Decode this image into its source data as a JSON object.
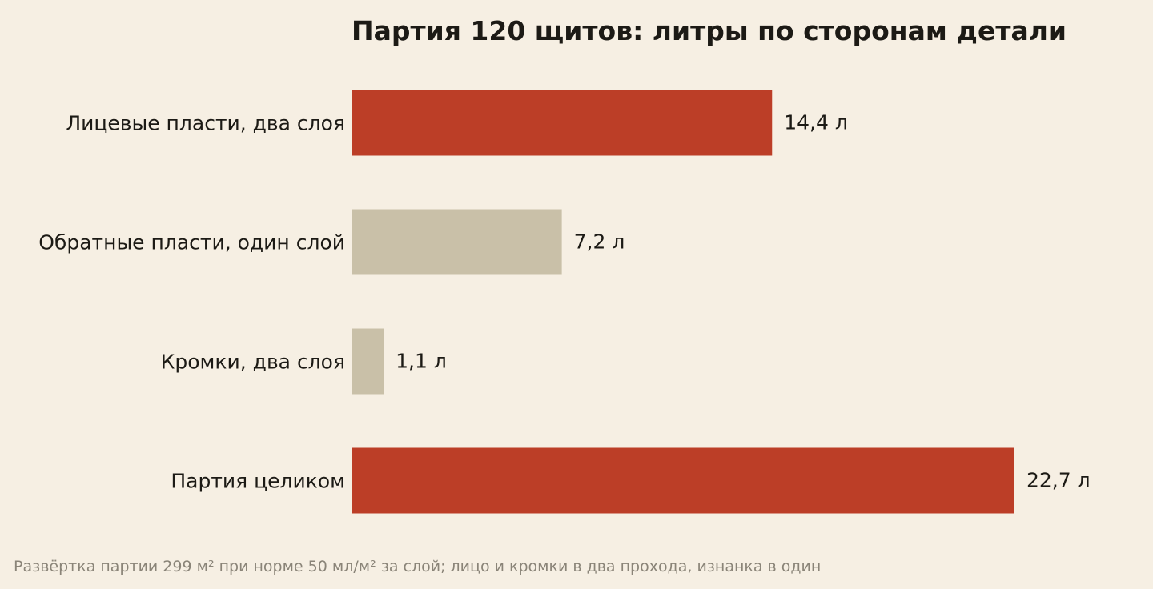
{
  "chart_data": {
    "type": "bar",
    "orientation": "horizontal",
    "title": "Партия 120 щитов: литры по сторонам детали",
    "xlabel": "",
    "ylabel": "",
    "categories": [
      "Лицевые пласти, два слоя",
      "Обратные пласти, один слой",
      "Кромки, два слоя",
      "Партия целиком"
    ],
    "values": [
      14.4,
      7.2,
      1.1,
      22.7
    ],
    "value_labels": [
      "14,4 л",
      "7,2 л",
      "1,1 л",
      "22,7 л"
    ],
    "bar_colors": [
      "#bc3e27",
      "#c9c0a8",
      "#c9c0a8",
      "#bc3e27"
    ],
    "xlim": [
      0,
      22.7
    ],
    "grid": false,
    "legend": "none",
    "footnote": "Развёртка партии 299 м² при норме 50 мл/м² за слой; лицо и кромки в два прохода, изнанка в один"
  },
  "colors": {
    "background": "#f6efe3",
    "text": "#1c1a15",
    "footnote_text": "#8a8478",
    "accent": "#bc3e27",
    "muted": "#c9c0a8"
  }
}
